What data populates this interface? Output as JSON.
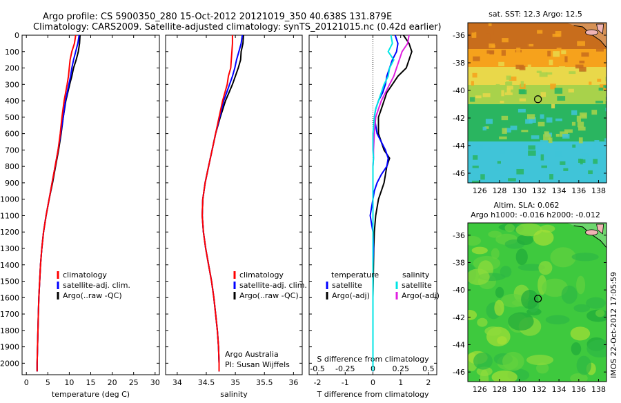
{
  "header": {
    "line1": "Argo profile: CS 5900350_280 15-Oct-2012 20121019_350 40.638S 131.879E",
    "line2": "Climatology: CARS2009. Satellite-adjusted climatology: synTS_20121015.nc (0.42d earlier)"
  },
  "colors": {
    "climatology": "#ff0000",
    "satellite": "#0000ff",
    "argo": "#000000",
    "salinity_satellite": "#00e5e5",
    "salinity_argo": "#e020e0"
  },
  "chart_data": [
    {
      "type": "line",
      "xlabel": "temperature (deg C)",
      "xlim": [
        -1,
        31
      ],
      "xticks": [
        "0",
        "5",
        "10",
        "15",
        "20",
        "25",
        "30"
      ],
      "ylim": [
        2070,
        0
      ],
      "yticks": [
        "0",
        "100",
        "200",
        "300",
        "400",
        "500",
        "600",
        "700",
        "800",
        "900",
        "1000",
        "1100",
        "1200",
        "1300",
        "1400",
        "1500",
        "1600",
        "1700",
        "1800",
        "1900",
        "2000"
      ],
      "legend": [
        "climatology",
        "satellite-adj. clim.",
        "Argo(..raw -QC)"
      ],
      "legend_location": "center-right",
      "depth": [
        0,
        50,
        100,
        150,
        200,
        250,
        300,
        400,
        500,
        600,
        700,
        800,
        900,
        1000,
        1100,
        1200,
        1300,
        1400,
        1500,
        1600,
        1700,
        1800,
        1900,
        2000,
        2050
      ],
      "series": [
        {
          "name": "climatology",
          "values": [
            11.5,
            11.2,
            10.6,
            10.2,
            10.0,
            9.8,
            9.5,
            8.8,
            8.3,
            7.9,
            7.4,
            6.7,
            6.0,
            5.3,
            4.6,
            4.0,
            3.6,
            3.3,
            3.1,
            2.9,
            2.8,
            2.7,
            2.6,
            2.5,
            2.5
          ]
        },
        {
          "name": "satellite-adj. clim.",
          "values": [
            12.3,
            12.0,
            11.5,
            11.0,
            10.6,
            10.3,
            9.9,
            9.1,
            8.6,
            8.0,
            7.4,
            6.7,
            6.0,
            5.3,
            4.6,
            4.0,
            3.6,
            3.3,
            3.1,
            2.9,
            2.8,
            2.7,
            2.6,
            2.5,
            2.5
          ]
        },
        {
          "name": "Argo(..raw -QC)",
          "values": [
            12.5,
            12.4,
            12.1,
            11.6,
            11.0,
            10.6,
            10.1,
            9.2,
            8.6,
            8.1,
            7.5,
            6.8,
            6.1,
            5.3,
            4.6,
            4.0,
            3.6,
            3.3,
            3.1,
            2.9,
            2.8,
            2.7,
            2.6,
            2.5,
            2.5
          ]
        }
      ]
    },
    {
      "type": "line",
      "xlabel": "salinity",
      "xlim": [
        33.8,
        36.15
      ],
      "xticks": [
        "34",
        "34.5",
        "35",
        "35.5",
        "36"
      ],
      "ylim": [
        2070,
        0
      ],
      "legend": [
        "climatology",
        "satellite-adj. clim.",
        "Argo(..raw -QC)"
      ],
      "legend_location": "center-right",
      "annotation": [
        "Argo Australia",
        "PI: Susan Wijffels"
      ],
      "depth": [
        0,
        50,
        100,
        150,
        200,
        250,
        300,
        400,
        500,
        600,
        700,
        800,
        900,
        1000,
        1100,
        1200,
        1300,
        1400,
        1500,
        1600,
        1700,
        1800,
        1900,
        2000,
        2050
      ],
      "series": [
        {
          "name": "climatology",
          "values": [
            34.95,
            34.95,
            34.94,
            34.93,
            34.92,
            34.88,
            34.86,
            34.78,
            34.72,
            34.66,
            34.6,
            34.54,
            34.48,
            34.44,
            34.43,
            34.45,
            34.49,
            34.54,
            34.59,
            34.63,
            34.66,
            34.69,
            34.71,
            34.72,
            34.72
          ]
        },
        {
          "name": "satellite-adj. clim.",
          "values": [
            35.12,
            35.1,
            35.06,
            35.02,
            34.99,
            34.95,
            34.9,
            34.8,
            34.73,
            34.66,
            34.6,
            34.54,
            34.48,
            34.44,
            34.43,
            34.45,
            34.49,
            34.54,
            34.59,
            34.63,
            34.66,
            34.69,
            34.71,
            34.72,
            34.72
          ]
        },
        {
          "name": "Argo(..raw -QC)",
          "values": [
            35.14,
            35.13,
            35.1,
            35.09,
            35.05,
            35.0,
            34.95,
            34.83,
            34.74,
            34.66,
            34.6,
            34.54,
            34.48,
            34.44,
            34.43,
            34.45,
            34.49,
            34.54,
            34.59,
            34.63,
            34.66,
            34.69,
            34.71,
            34.72,
            34.72
          ]
        }
      ]
    },
    {
      "type": "line",
      "xlabel": "T difference from climatology",
      "xlabel_top": "S difference from climatology",
      "xlim": [
        -2.3,
        2.3
      ],
      "xticks": [
        "-2",
        "-1",
        "0",
        "1",
        "2"
      ],
      "xticks_salinity": [
        "-0.5",
        "-0.25",
        "0",
        "0.25",
        "0.5"
      ],
      "ylim": [
        2070,
        0
      ],
      "legend_temperature": {
        "title": "temperature",
        "entries": [
          "satellite",
          "Argo(-adj)"
        ]
      },
      "legend_salinity": {
        "title": "salinity",
        "entries": [
          "satellite",
          "Argo(-adj)"
        ]
      },
      "depth": [
        0,
        50,
        100,
        150,
        200,
        250,
        300,
        350,
        400,
        450,
        500,
        600,
        700,
        750,
        800,
        850,
        900,
        950,
        1000,
        1100,
        1200,
        1300,
        1400,
        1600,
        1800,
        2000,
        2050
      ],
      "series": [
        {
          "name": "temperature satellite",
          "values": [
            0.8,
            0.9,
            0.85,
            0.7,
            0.6,
            0.5,
            0.45,
            0.35,
            0.2,
            0.1,
            0.05,
            0.15,
            0.45,
            0.55,
            0.5,
            0.3,
            0.15,
            0.05,
            0.0,
            -0.1,
            0.0,
            0.02,
            0.0,
            0.0,
            0.0,
            0.0,
            0.0
          ]
        },
        {
          "name": "temperature Argo(-adj)",
          "values": [
            1.1,
            1.3,
            1.4,
            1.3,
            1.2,
            0.9,
            0.7,
            0.5,
            0.4,
            0.3,
            0.2,
            0.2,
            0.4,
            0.6,
            0.5,
            0.45,
            0.4,
            0.3,
            0.2,
            0.1,
            0.05,
            0.03,
            0.02,
            0.0,
            0.0,
            0.0,
            0.0
          ]
        },
        {
          "name": "salinity satellite",
          "values": [
            0.65,
            0.7,
            0.55,
            0.75,
            0.6,
            0.55,
            0.4,
            0.3,
            0.2,
            0.1,
            0.05,
            0.0,
            0.0,
            0.02,
            0.0,
            0.0,
            0.0,
            0.0,
            0.0,
            0.0,
            0.0,
            0.0,
            0.0,
            0.0,
            0.0,
            0.0,
            0.0
          ]
        },
        {
          "name": "salinity Argo(-adj)",
          "values": [
            1.3,
            1.25,
            1.05,
            0.95,
            0.85,
            0.75,
            0.6,
            0.45,
            0.3,
            0.2,
            0.1,
            0.05,
            0.02,
            0.02,
            0.0,
            0.0,
            0.0,
            0.0,
            0.0,
            0.0,
            0.0,
            0.0,
            0.0,
            0.0,
            0.0,
            0.0,
            0.0
          ]
        }
      ]
    },
    {
      "type": "heatmap",
      "title": "sat. SST: 12.3  Argo: 12.5",
      "xticks": [
        "126",
        "128",
        "130",
        "132",
        "134",
        "136",
        "138"
      ],
      "yticks": [
        "-36",
        "-38",
        "-40",
        "-42",
        "-44",
        "-46"
      ],
      "xlim": [
        124.8,
        138.8
      ],
      "ylim": [
        -46.7,
        -35.1
      ],
      "marker": {
        "lon": 131.879,
        "lat": -40.638
      },
      "color_bands": [
        {
          "lat_max": -35.1,
          "lat_min": -37.0,
          "color": "#c86d1c"
        },
        {
          "lat_max": -37.0,
          "lat_min": -38.3,
          "color": "#f6a21c"
        },
        {
          "lat_max": -38.3,
          "lat_min": -39.6,
          "color": "#e9d84a"
        },
        {
          "lat_max": -39.6,
          "lat_min": -41.0,
          "color": "#a8d24b"
        },
        {
          "lat_max": -41.0,
          "lat_min": -43.7,
          "color": "#2ab560"
        },
        {
          "lat_max": -43.7,
          "lat_min": -46.7,
          "color": "#40c4d8"
        }
      ]
    },
    {
      "type": "heatmap",
      "title_lines": [
        "Altim. SLA: 0.062",
        "Argo h1000: -0.016  h2000: -0.012"
      ],
      "xticks": [
        "126",
        "128",
        "130",
        "132",
        "134",
        "136",
        "138"
      ],
      "yticks": [
        "-36",
        "-38",
        "-40",
        "-42",
        "-44",
        "-46"
      ],
      "xlim": [
        124.8,
        138.8
      ],
      "ylim": [
        -46.7,
        -35.1
      ],
      "marker": {
        "lon": 131.879,
        "lat": -40.638
      },
      "base_color": "#3ec93e"
    }
  ],
  "footer": {
    "side_text": "IMOS 22-Oct-2012 17:05:59"
  }
}
